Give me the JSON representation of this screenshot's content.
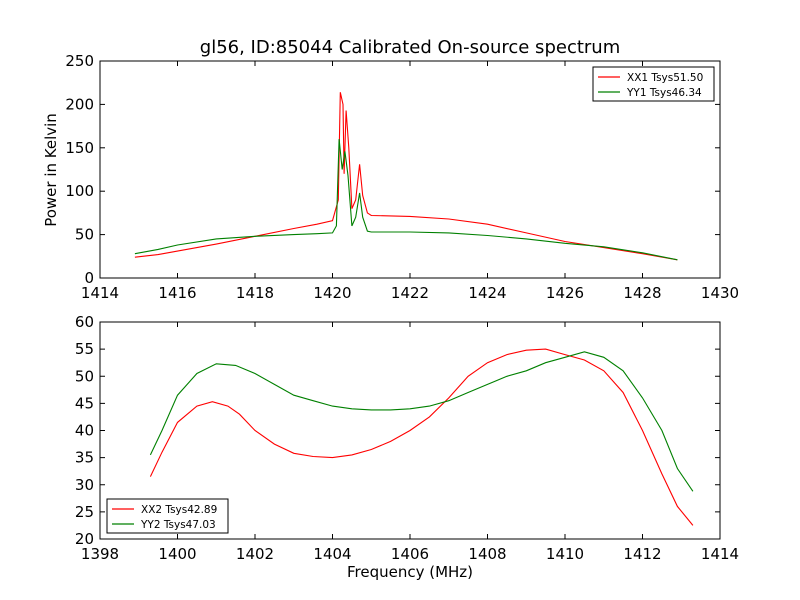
{
  "title": "gl56, ID:85044 Calibrated On-source spectrum",
  "chart_data": [
    {
      "type": "line",
      "xlim": [
        1414,
        1430
      ],
      "ylim": [
        0,
        250
      ],
      "xticks": [
        1414,
        1416,
        1418,
        1420,
        1422,
        1424,
        1426,
        1428,
        1430
      ],
      "yticks": [
        0,
        50,
        100,
        150,
        200,
        250
      ],
      "ylabel": "Power in Kelvin",
      "xlabel": "",
      "grid": false,
      "legend": "top-right",
      "series": [
        {
          "name": "XX1 Tsys51.50",
          "color": "#ff0000",
          "points": [
            [
              1414.9,
              24
            ],
            [
              1415.5,
              27
            ],
            [
              1416,
              31
            ],
            [
              1417,
              39
            ],
            [
              1418,
              48
            ],
            [
              1419,
              57
            ],
            [
              1419.6,
              62
            ],
            [
              1420.0,
              66
            ],
            [
              1420.15,
              90
            ],
            [
              1420.2,
              214
            ],
            [
              1420.27,
              200
            ],
            [
              1420.3,
              120
            ],
            [
              1420.35,
              193
            ],
            [
              1420.42,
              150
            ],
            [
              1420.5,
              80
            ],
            [
              1420.6,
              90
            ],
            [
              1420.7,
              131
            ],
            [
              1420.78,
              95
            ],
            [
              1420.9,
              75
            ],
            [
              1421.0,
              72
            ],
            [
              1422,
              71
            ],
            [
              1423,
              68
            ],
            [
              1424,
              62
            ],
            [
              1425,
              52
            ],
            [
              1426,
              42
            ],
            [
              1427,
              35
            ],
            [
              1428,
              28
            ],
            [
              1428.9,
              21
            ]
          ]
        },
        {
          "name": "YY1 Tsys46.34",
          "color": "#008000",
          "points": [
            [
              1414.9,
              28
            ],
            [
              1415.5,
              33
            ],
            [
              1416,
              38
            ],
            [
              1417,
              45
            ],
            [
              1418,
              48
            ],
            [
              1419,
              50
            ],
            [
              1419.6,
              51
            ],
            [
              1420.0,
              52
            ],
            [
              1420.1,
              60
            ],
            [
              1420.17,
              160
            ],
            [
              1420.25,
              125
            ],
            [
              1420.32,
              146
            ],
            [
              1420.4,
              118
            ],
            [
              1420.5,
              60
            ],
            [
              1420.6,
              70
            ],
            [
              1420.7,
              98
            ],
            [
              1420.78,
              70
            ],
            [
              1420.9,
              54
            ],
            [
              1421.0,
              53
            ],
            [
              1422,
              53
            ],
            [
              1423,
              52
            ],
            [
              1424,
              49
            ],
            [
              1425,
              45
            ],
            [
              1426,
              40
            ],
            [
              1427,
              36
            ],
            [
              1428,
              29
            ],
            [
              1428.9,
              21
            ]
          ]
        }
      ]
    },
    {
      "type": "line",
      "xlim": [
        1398,
        1414
      ],
      "ylim": [
        20,
        60
      ],
      "xticks": [
        1398,
        1400,
        1402,
        1404,
        1406,
        1408,
        1410,
        1412,
        1414
      ],
      "yticks": [
        20,
        25,
        30,
        35,
        40,
        45,
        50,
        55,
        60
      ],
      "xlabel": "Frequency (MHz)",
      "ylabel": "",
      "grid": false,
      "legend": "bottom-left",
      "series": [
        {
          "name": "XX2 Tsys42.89",
          "color": "#ff0000",
          "points": [
            [
              1399.3,
              31.5
            ],
            [
              1399.6,
              36
            ],
            [
              1400,
              41.5
            ],
            [
              1400.5,
              44.5
            ],
            [
              1400.9,
              45.3
            ],
            [
              1401.3,
              44.5
            ],
            [
              1401.6,
              43
            ],
            [
              1402,
              40
            ],
            [
              1402.5,
              37.5
            ],
            [
              1403,
              35.8
            ],
            [
              1403.5,
              35.2
            ],
            [
              1404,
              35
            ],
            [
              1404.5,
              35.5
            ],
            [
              1405,
              36.5
            ],
            [
              1405.5,
              38
            ],
            [
              1406,
              40
            ],
            [
              1406.5,
              42.5
            ],
            [
              1407,
              46
            ],
            [
              1407.5,
              50
            ],
            [
              1408,
              52.5
            ],
            [
              1408.5,
              54
            ],
            [
              1409,
              54.8
            ],
            [
              1409.5,
              55
            ],
            [
              1410,
              54
            ],
            [
              1410.5,
              53
            ],
            [
              1411,
              51
            ],
            [
              1411.5,
              47
            ],
            [
              1412,
              40
            ],
            [
              1412.5,
              32
            ],
            [
              1412.9,
              26
            ],
            [
              1413.3,
              22.5
            ]
          ]
        },
        {
          "name": "YY2 Tsys47.03",
          "color": "#008000",
          "points": [
            [
              1399.3,
              35.5
            ],
            [
              1399.6,
              40
            ],
            [
              1400,
              46.5
            ],
            [
              1400.5,
              50.5
            ],
            [
              1401,
              52.3
            ],
            [
              1401.5,
              52
            ],
            [
              1402,
              50.5
            ],
            [
              1402.5,
              48.5
            ],
            [
              1403,
              46.5
            ],
            [
              1403.5,
              45.5
            ],
            [
              1404,
              44.5
            ],
            [
              1404.5,
              44
            ],
            [
              1405,
              43.8
            ],
            [
              1405.5,
              43.8
            ],
            [
              1406,
              44
            ],
            [
              1406.5,
              44.5
            ],
            [
              1407,
              45.5
            ],
            [
              1407.5,
              47
            ],
            [
              1408,
              48.5
            ],
            [
              1408.5,
              50
            ],
            [
              1409,
              51
            ],
            [
              1409.5,
              52.5
            ],
            [
              1410,
              53.5
            ],
            [
              1410.5,
              54.5
            ],
            [
              1411,
              53.5
            ],
            [
              1411.5,
              51
            ],
            [
              1412,
              46
            ],
            [
              1412.5,
              40
            ],
            [
              1412.9,
              33
            ],
            [
              1413.3,
              28.8
            ]
          ]
        }
      ]
    }
  ]
}
